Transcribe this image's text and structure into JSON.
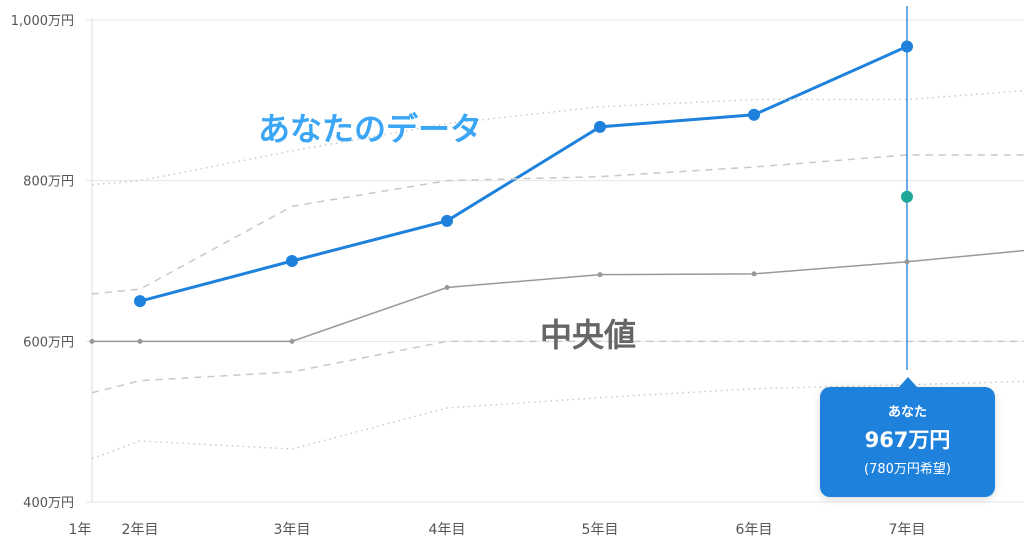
{
  "chart_data": {
    "type": "line",
    "categories": [
      "1年",
      "2年目",
      "3年目",
      "4年目",
      "5年目",
      "6年目",
      "7年目",
      ""
    ],
    "y_ticks": [
      "400万円",
      "600万円",
      "800万円",
      "1,000万円"
    ],
    "ylim": [
      400,
      1000
    ],
    "grid": true,
    "series": [
      {
        "key": "you",
        "values": [
          null,
          650,
          700,
          750,
          867,
          882,
          967,
          null
        ],
        "color": "#1e82dc",
        "style": "solid-markers"
      },
      {
        "key": "median",
        "values": [
          600,
          600,
          600,
          667,
          683,
          684,
          699,
          713
        ],
        "color": "#999999",
        "style": "solid-small-markers"
      },
      {
        "key": "upper_dashed",
        "values": [
          659,
          665,
          768,
          800,
          805,
          817,
          832,
          832
        ],
        "color": "#c8c8c8",
        "style": "dashed"
      },
      {
        "key": "upper_dotted",
        "values": [
          795,
          800,
          837,
          871,
          892,
          901,
          901,
          912
        ],
        "color": "#c8c8c8",
        "style": "dotted"
      },
      {
        "key": "lower_dashed",
        "values": [
          536,
          551,
          562,
          600,
          600,
          600,
          600,
          600
        ],
        "color": "#c8c8c8",
        "style": "dashed"
      },
      {
        "key": "lower_dotted",
        "values": [
          454,
          476,
          466,
          517,
          530,
          541,
          546,
          550
        ],
        "color": "#c8c8c8",
        "style": "dotted"
      }
    ],
    "desired_point": {
      "category": "7年目",
      "value": 780,
      "color": "#1fa89a"
    },
    "annotations": {
      "you": "あなたのデータ",
      "median": "中央値"
    },
    "tooltip": {
      "label": "あなた",
      "value": "967万円",
      "sub": "(780万円希望)"
    }
  }
}
